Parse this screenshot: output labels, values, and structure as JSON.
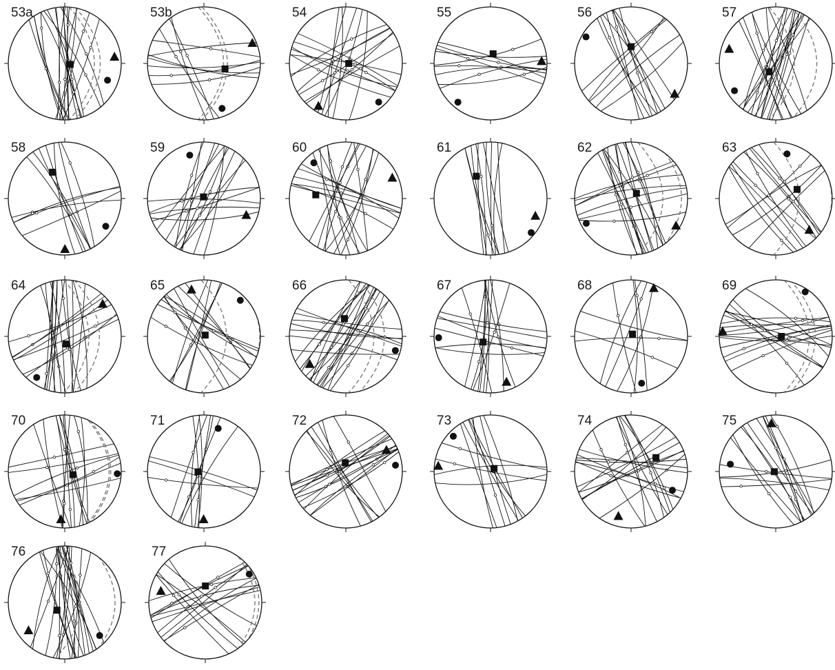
{
  "figure": {
    "rows": [
      [
        "53a",
        "53b",
        "54",
        "55",
        "56",
        "57"
      ],
      [
        "58",
        "59",
        "60",
        "61",
        "62",
        "63"
      ],
      [
        "64",
        "65",
        "66",
        "67",
        "68",
        "69"
      ],
      [
        "70",
        "71",
        "72",
        "73",
        "74",
        "75"
      ],
      [
        "76",
        "77"
      ]
    ]
  },
  "colors": {
    "ink": "#111111",
    "dashed": "#7a7a7a"
  },
  "symbols": [
    "square",
    "triangle",
    "circle"
  ]
}
